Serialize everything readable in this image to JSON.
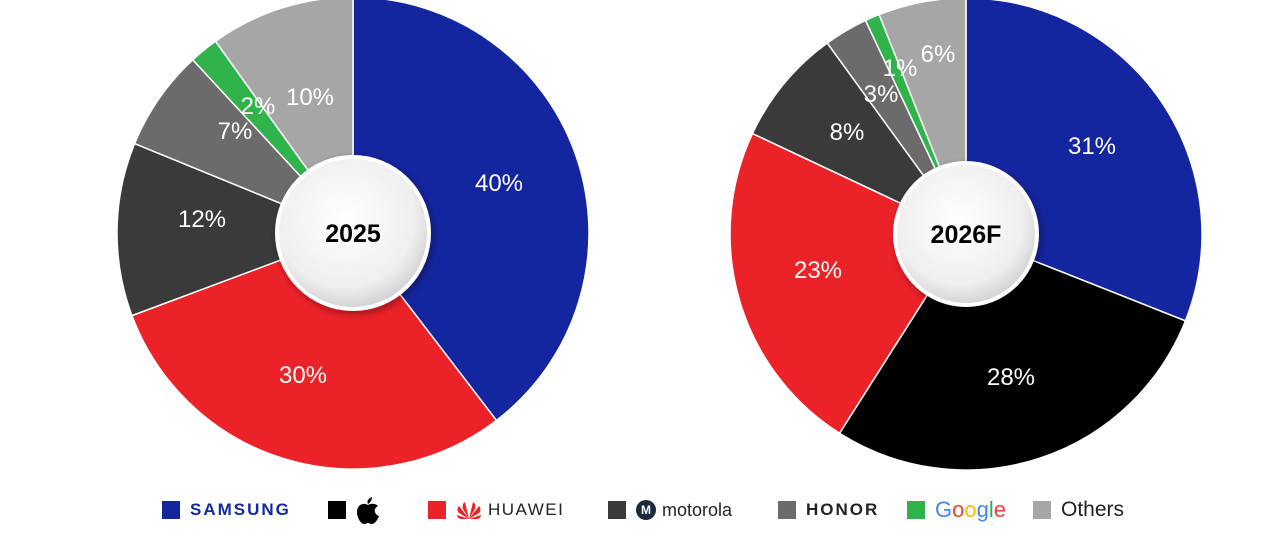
{
  "chart_data": [
    {
      "type": "pie",
      "title": "2025",
      "slices": [
        {
          "label": "Samsung",
          "value": 40,
          "text": "40%",
          "color": "#1425a0"
        },
        {
          "label": "Apple",
          "value": 0,
          "text": "",
          "color": "#000000"
        },
        {
          "label": "Huawei",
          "value": 30,
          "text": "30%",
          "color": "#ec2229"
        },
        {
          "label": "Motorola",
          "value": 12,
          "text": "12%",
          "color": "#3a3a3a"
        },
        {
          "label": "HONOR",
          "value": 7,
          "text": "7%",
          "color": "#6b6b6b"
        },
        {
          "label": "Google",
          "value": 2,
          "text": "2%",
          "color": "#2fb34a"
        },
        {
          "label": "Others",
          "value": 10,
          "text": "10%",
          "color": "#a6a6a6"
        }
      ]
    },
    {
      "type": "pie",
      "title": "2026F",
      "slices": [
        {
          "label": "Samsung",
          "value": 31,
          "text": "31%",
          "color": "#1425a0"
        },
        {
          "label": "Apple",
          "value": 28,
          "text": "28%",
          "color": "#000000"
        },
        {
          "label": "Huawei",
          "value": 23,
          "text": "23%",
          "color": "#ec2229"
        },
        {
          "label": "Motorola",
          "value": 8,
          "text": "8%",
          "color": "#3a3a3a"
        },
        {
          "label": "HONOR",
          "value": 3,
          "text": "3%",
          "color": "#6b6b6b"
        },
        {
          "label": "Google",
          "value": 1,
          "text": "1%",
          "color": "#2fb34a"
        },
        {
          "label": "Others",
          "value": 6,
          "text": "6%",
          "color": "#a6a6a6"
        }
      ]
    }
  ],
  "legend": {
    "samsung": {
      "label": "SAMSUNG",
      "color": "#1425a0"
    },
    "apple": {
      "icon": "apple-logo-icon",
      "color": "#000000"
    },
    "huawei": {
      "label": "HUAWEI",
      "color": "#ec2229"
    },
    "motorola": {
      "label": "motorola",
      "color": "#3a3a3a"
    },
    "honor": {
      "label": "HONOR",
      "color": "#6b6b6b"
    },
    "google": {
      "label": "Google",
      "color": "#2fb34a"
    },
    "others": {
      "label": "Others",
      "color": "#a6a6a6"
    }
  },
  "watermark": {
    "icon": "counterpoint-watermark-icon"
  }
}
